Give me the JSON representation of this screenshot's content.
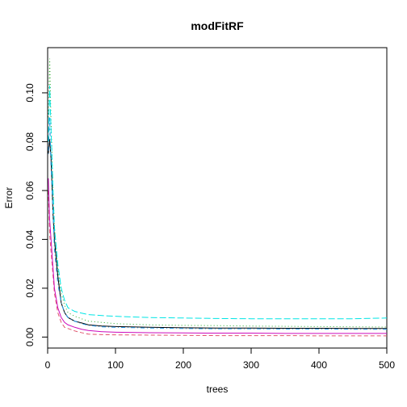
{
  "chart_data": {
    "type": "line",
    "title": "modFitRF",
    "xlabel": "trees",
    "ylabel": "Error",
    "xlim": [
      0,
      500
    ],
    "ylim": [
      -0.0045,
      0.1185
    ],
    "xticks": [
      0,
      100,
      200,
      300,
      400,
      500
    ],
    "xtick_labels": [
      "0",
      "100",
      "200",
      "300",
      "400",
      "500"
    ],
    "yticks": [
      0.0,
      0.02,
      0.04,
      0.06,
      0.08,
      0.1
    ],
    "ytick_labels": [
      "0.00",
      "0.02",
      "0.04",
      "0.06",
      "0.08",
      "0.10"
    ],
    "grid": false,
    "legend": "none",
    "series": [
      {
        "color": "#000000",
        "dash": "solid",
        "x": [
          1,
          3,
          5,
          8,
          10,
          15,
          20,
          25,
          30,
          40,
          50,
          60,
          80,
          100,
          150,
          200,
          250,
          300,
          350,
          400,
          450,
          500
        ],
        "y": [
          0.075,
          0.081,
          0.073,
          0.05,
          0.04,
          0.025,
          0.014,
          0.01,
          0.008,
          0.0065,
          0.0058,
          0.005,
          0.0045,
          0.0043,
          0.004,
          0.0038,
          0.0037,
          0.0037,
          0.0036,
          0.0036,
          0.0035,
          0.0035
        ]
      },
      {
        "color": "#DF536B",
        "dash": "dashed",
        "x": [
          1,
          3,
          5,
          8,
          10,
          15,
          20,
          25,
          30,
          40,
          50,
          60,
          80,
          100,
          150,
          200,
          250,
          300,
          350,
          400,
          450,
          500
        ],
        "y": [
          0.06,
          0.042,
          0.035,
          0.025,
          0.018,
          0.01,
          0.006,
          0.004,
          0.0035,
          0.0025,
          0.0018,
          0.0012,
          0.001,
          0.0009,
          0.0008,
          0.0007,
          0.0006,
          0.0006,
          0.0006,
          0.0005,
          0.0005,
          0.0005
        ]
      },
      {
        "color": "#22AA22",
        "dash": "dotted",
        "x": [
          1,
          3,
          5,
          8,
          10,
          15,
          20,
          25,
          30,
          40,
          50,
          60,
          80,
          100,
          150,
          200,
          250,
          300,
          350,
          400,
          450,
          500
        ],
        "y": [
          0.09,
          0.114,
          0.088,
          0.06,
          0.045,
          0.028,
          0.018,
          0.013,
          0.01,
          0.0085,
          0.0075,
          0.0065,
          0.006,
          0.0055,
          0.005,
          0.0048,
          0.0047,
          0.0045,
          0.0044,
          0.0043,
          0.0042,
          0.0041
        ]
      },
      {
        "color": "#2297E6",
        "dash": "dotdash",
        "x": [
          1,
          3,
          5,
          8,
          10,
          15,
          20,
          25,
          30,
          40,
          50,
          60,
          80,
          100,
          150,
          200,
          250,
          300,
          350,
          400,
          450,
          500
        ],
        "y": [
          0.075,
          0.09,
          0.07,
          0.05,
          0.036,
          0.022,
          0.014,
          0.01,
          0.008,
          0.0065,
          0.0055,
          0.0048,
          0.0042,
          0.004,
          0.0037,
          0.0035,
          0.0034,
          0.0034,
          0.0033,
          0.0033,
          0.0032,
          0.0032
        ]
      },
      {
        "color": "#00E5E5",
        "dash": "longdash",
        "x": [
          1,
          3,
          5,
          8,
          10,
          15,
          20,
          25,
          30,
          40,
          50,
          60,
          80,
          100,
          150,
          200,
          250,
          300,
          350,
          400,
          450,
          500
        ],
        "y": [
          0.08,
          0.103,
          0.085,
          0.06,
          0.045,
          0.03,
          0.02,
          0.015,
          0.012,
          0.0105,
          0.0098,
          0.0092,
          0.0088,
          0.0085,
          0.008,
          0.0078,
          0.0076,
          0.0075,
          0.0075,
          0.0075,
          0.0075,
          0.0078
        ]
      },
      {
        "color": "#CD0BBC",
        "dash": "solid",
        "x": [
          1,
          3,
          5,
          8,
          10,
          15,
          20,
          25,
          30,
          40,
          50,
          60,
          80,
          100,
          150,
          200,
          250,
          300,
          350,
          400,
          450,
          500
        ],
        "y": [
          0.065,
          0.048,
          0.04,
          0.028,
          0.02,
          0.012,
          0.008,
          0.006,
          0.005,
          0.004,
          0.0032,
          0.0027,
          0.0022,
          0.002,
          0.0018,
          0.0017,
          0.0016,
          0.0016,
          0.0015,
          0.0015,
          0.0015,
          0.0015
        ]
      }
    ]
  }
}
